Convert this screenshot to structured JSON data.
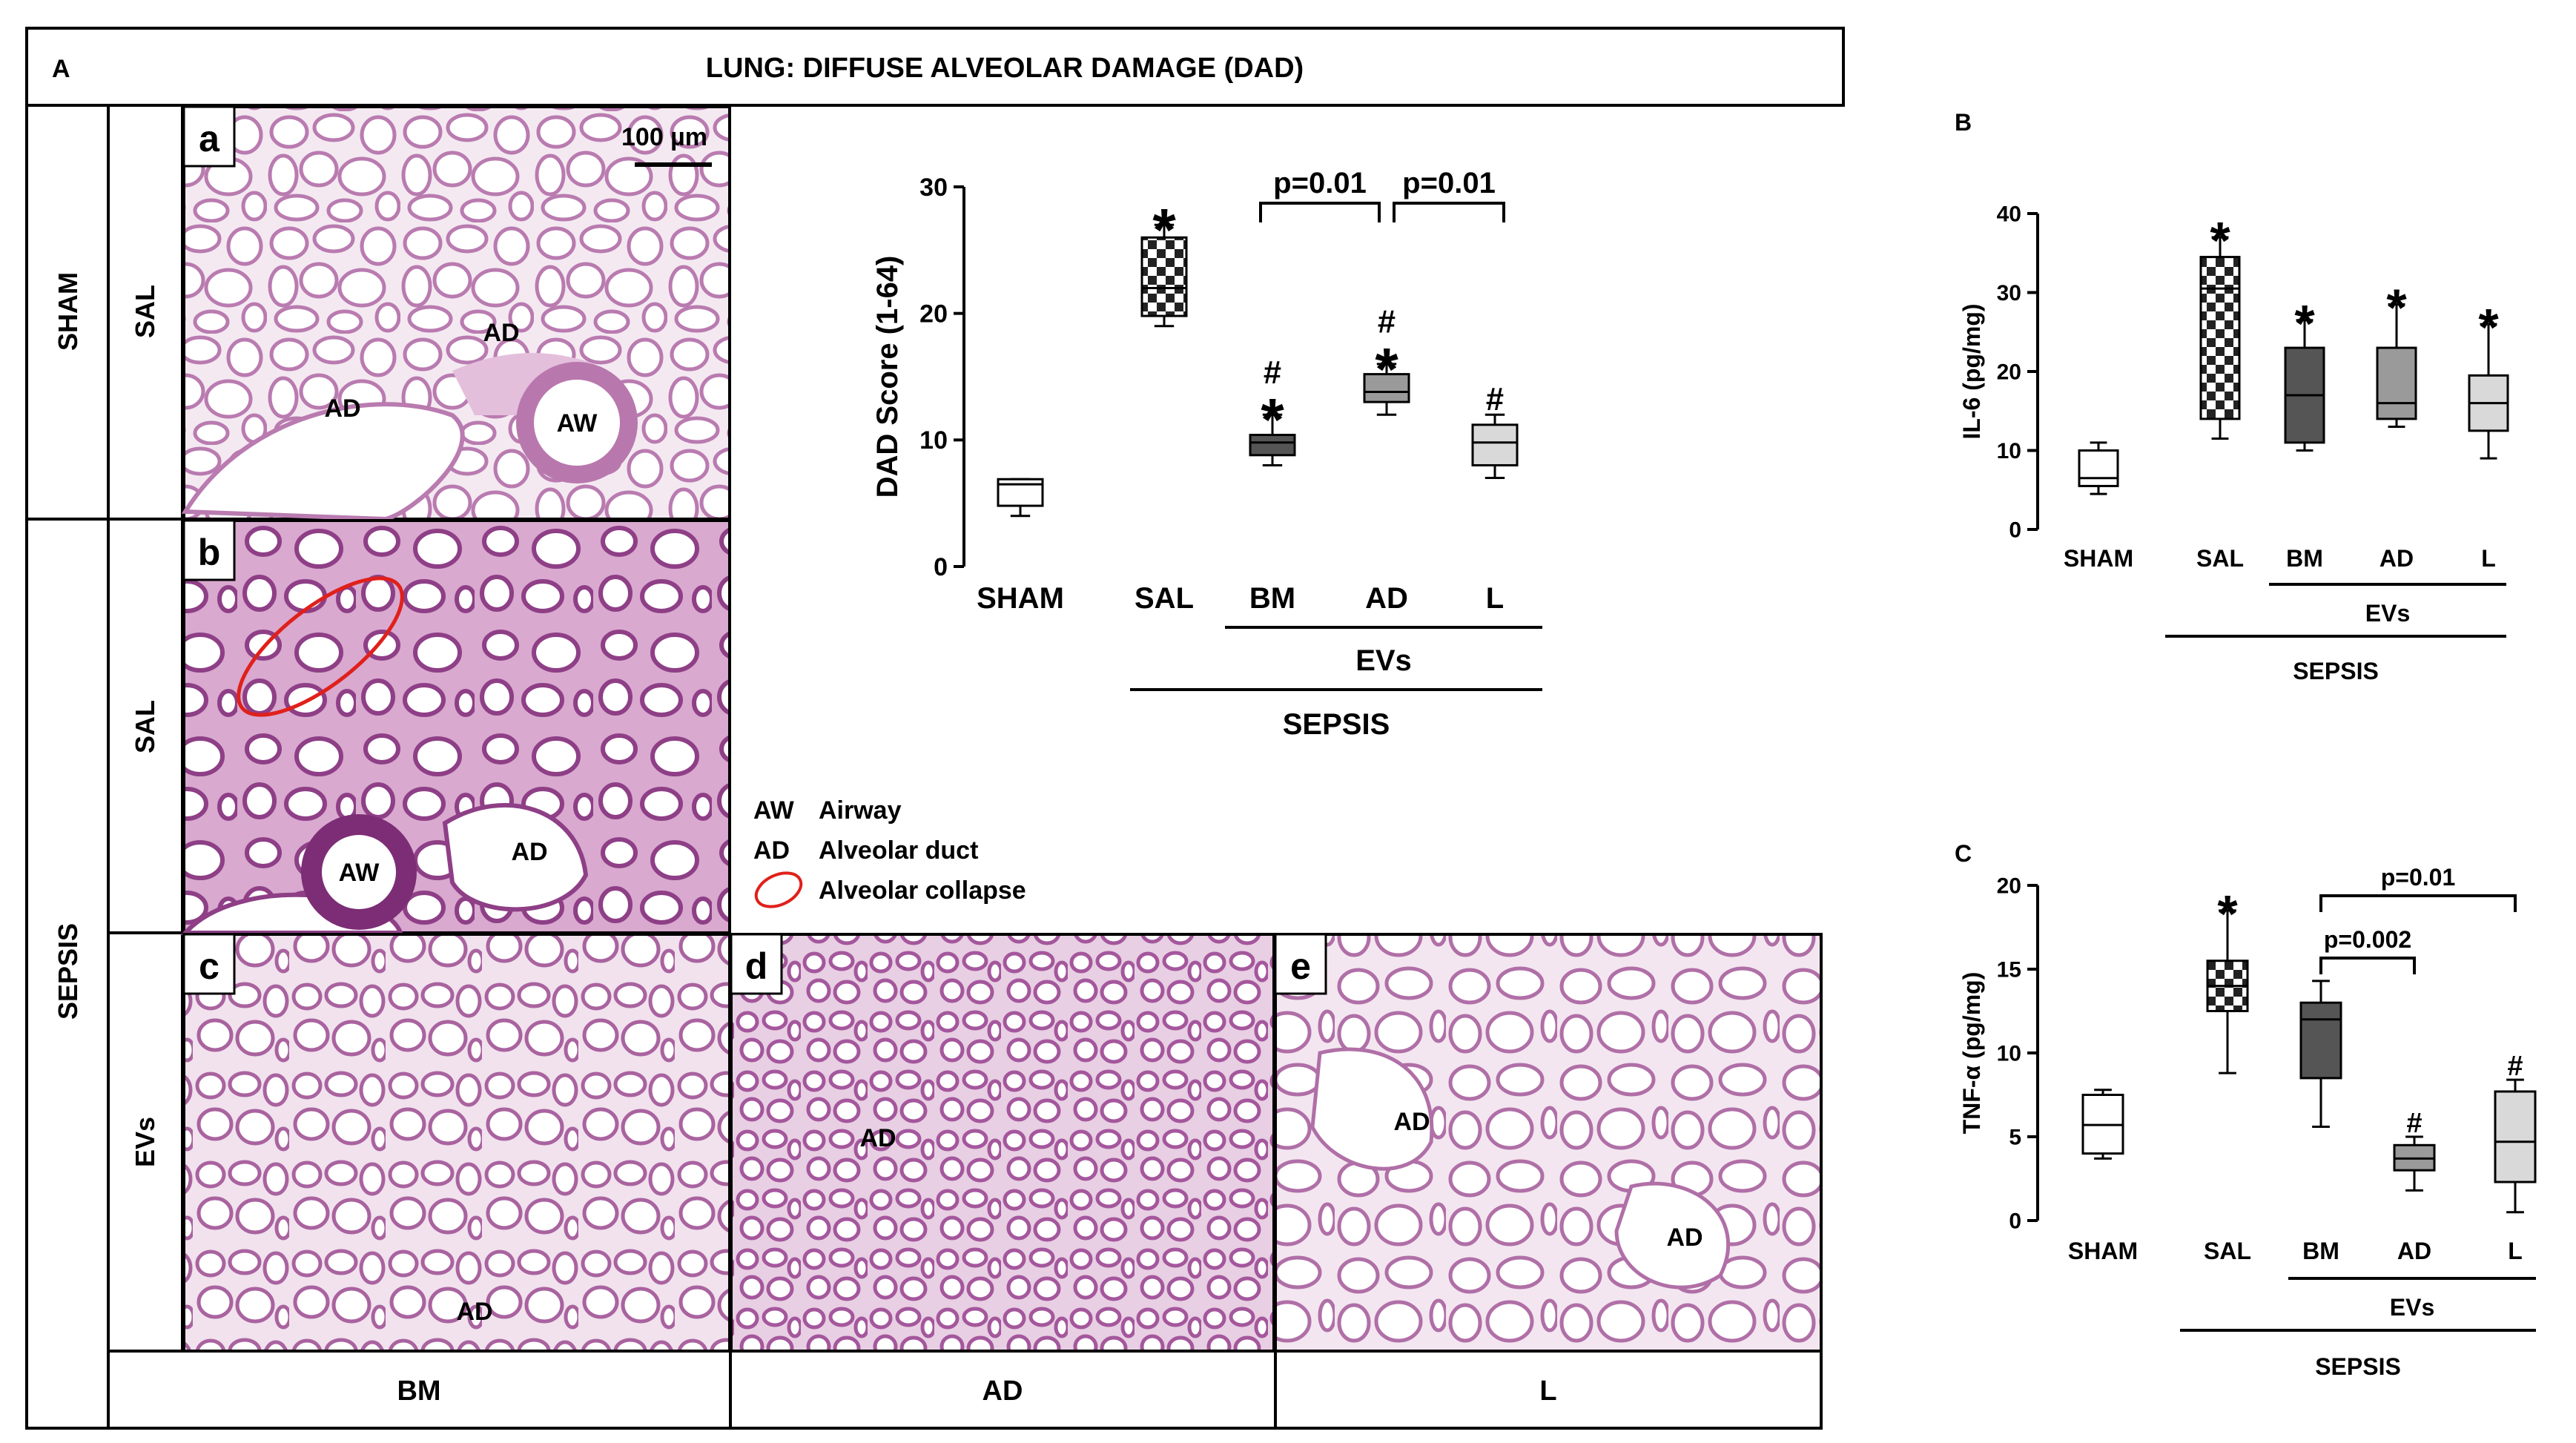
{
  "panel_A": {
    "letter": "A",
    "title": "LUNG: DIFFUSE ALVEOLAR DAMAGE (DAD)",
    "row_labels": {
      "sham": "SHAM",
      "sepsis": "SEPSIS"
    },
    "sub_row_labels": {
      "sham_sal": "SAL",
      "sepsis_sal": "SAL",
      "sepsis_evs": "EVs"
    },
    "column_labels": [
      "BM",
      "AD",
      "L"
    ],
    "scale_bar": "100 µm",
    "micrographs": [
      {
        "letter": "a",
        "labels": [
          "AD",
          "AD",
          "AW"
        ]
      },
      {
        "letter": "b",
        "labels": [
          "AW",
          "AD"
        ]
      },
      {
        "letter": "c",
        "labels": [
          "AD"
        ]
      },
      {
        "letter": "d",
        "labels": [
          "AD"
        ]
      },
      {
        "letter": "e",
        "labels": [
          "AD",
          "AD"
        ]
      }
    ],
    "legend": [
      {
        "abbr": "AW",
        "text": "Airway"
      },
      {
        "abbr": "AD",
        "text": "Alveolar duct"
      },
      {
        "abbr": "",
        "text": "Alveolar collapse",
        "symbol": "red-ellipse"
      }
    ]
  },
  "chart_data": [
    {
      "panel": "A",
      "type": "box",
      "ylabel": "DAD Score (1-64)",
      "ylim": [
        0,
        30
      ],
      "yticks": [
        0,
        10,
        20,
        30
      ],
      "categories": [
        "SHAM",
        "SAL",
        "BM",
        "AD",
        "L"
      ],
      "group_labels": {
        "inner": "EVs",
        "outer": "SEPSIS"
      },
      "boxes": [
        {
          "category": "SHAM",
          "min": 4,
          "q1": 4.8,
          "median": 6.5,
          "q3": 6.9,
          "max": 6.9,
          "fill": "#ffffff",
          "marks": []
        },
        {
          "category": "SAL",
          "min": 19,
          "q1": 19.8,
          "median": 22,
          "q3": 26,
          "max": 27,
          "fill": "checker",
          "marks": [
            "*"
          ]
        },
        {
          "category": "BM",
          "min": 8,
          "q1": 8.8,
          "median": 9.8,
          "q3": 10.4,
          "max": 12,
          "fill": "#555555",
          "marks": [
            "*",
            "#"
          ]
        },
        {
          "category": "AD",
          "min": 12,
          "q1": 13,
          "median": 13.8,
          "q3": 15.2,
          "max": 16,
          "fill": "#9a9a9a",
          "marks": [
            "*",
            "#"
          ]
        },
        {
          "category": "L",
          "min": 7,
          "q1": 8,
          "median": 9.8,
          "q3": 11.2,
          "max": 12,
          "fill": "#d9d9d9",
          "marks": [
            "#"
          ]
        }
      ],
      "comparisons": [
        {
          "from": "BM",
          "to": "AD",
          "label": "p=0.01"
        },
        {
          "from": "AD",
          "to": "L",
          "label": "p=0.01"
        }
      ]
    },
    {
      "panel": "B",
      "type": "box",
      "ylabel": "IL-6  (pg/mg)",
      "ylim": [
        0,
        40
      ],
      "yticks": [
        0,
        10,
        20,
        30,
        40
      ],
      "categories": [
        "SHAM",
        "SAL",
        "BM",
        "AD",
        "L"
      ],
      "group_labels": {
        "inner": "EVs",
        "outer": "SEPSIS"
      },
      "boxes": [
        {
          "category": "SHAM",
          "min": 4.5,
          "q1": 5.5,
          "median": 6.5,
          "q3": 10,
          "max": 11,
          "fill": "#ffffff",
          "marks": []
        },
        {
          "category": "SAL",
          "min": 11.5,
          "q1": 14,
          "median": 30.5,
          "q3": 34.5,
          "max": 37,
          "fill": "checker",
          "marks": [
            "*"
          ]
        },
        {
          "category": "BM",
          "min": 10,
          "q1": 11,
          "median": 17,
          "q3": 23,
          "max": 26.5,
          "fill": "#555555",
          "marks": [
            "*"
          ]
        },
        {
          "category": "AD",
          "min": 13,
          "q1": 14,
          "median": 16,
          "q3": 23,
          "max": 28.5,
          "fill": "#9a9a9a",
          "marks": [
            "*"
          ]
        },
        {
          "category": "L",
          "min": 9,
          "q1": 12.5,
          "median": 16,
          "q3": 19.5,
          "max": 26,
          "fill": "#d9d9d9",
          "marks": [
            "*"
          ]
        }
      ],
      "comparisons": []
    },
    {
      "panel": "C",
      "type": "box",
      "ylabel": "TNF-α (pg/mg)",
      "ylim": [
        0,
        20
      ],
      "yticks": [
        0,
        5,
        10,
        15,
        20
      ],
      "categories": [
        "SHAM",
        "SAL",
        "BM",
        "AD",
        "L"
      ],
      "group_labels": {
        "inner": "EVs",
        "outer": "SEPSIS"
      },
      "boxes": [
        {
          "category": "SHAM",
          "min": 3.7,
          "q1": 4,
          "median": 5.7,
          "q3": 7.5,
          "max": 7.8,
          "fill": "#ffffff",
          "marks": []
        },
        {
          "category": "SAL",
          "min": 8.8,
          "q1": 12.5,
          "median": 14,
          "q3": 15.5,
          "max": 18.5,
          "fill": "checker",
          "marks": [
            "*"
          ]
        },
        {
          "category": "BM",
          "min": 5.6,
          "q1": 8.5,
          "median": 12,
          "q3": 13,
          "max": 14.3,
          "fill": "#555555",
          "marks": []
        },
        {
          "category": "AD",
          "min": 1.8,
          "q1": 3,
          "median": 3.7,
          "q3": 4.5,
          "max": 5,
          "fill": "#9a9a9a",
          "marks": [
            "#"
          ]
        },
        {
          "category": "L",
          "min": 0.5,
          "q1": 2.3,
          "median": 4.7,
          "q3": 7.7,
          "max": 8.4,
          "fill": "#d9d9d9",
          "marks": [
            "#"
          ]
        }
      ],
      "comparisons": [
        {
          "from": "BM",
          "to": "AD",
          "label": "p=0.002"
        },
        {
          "from": "BM",
          "to": "L",
          "label": "p=0.01"
        }
      ]
    }
  ]
}
